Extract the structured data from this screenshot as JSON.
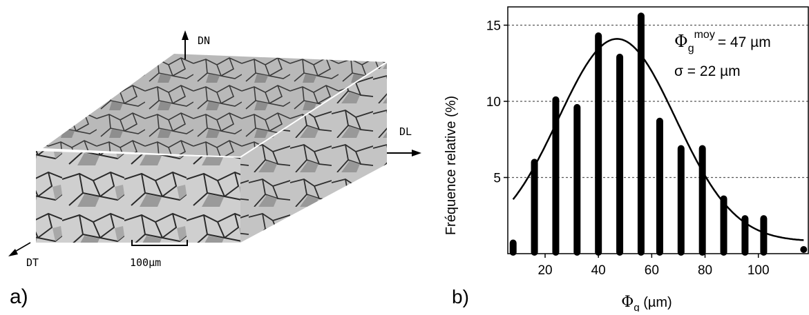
{
  "panel_a": {
    "label": "a)",
    "axis_labels": {
      "normal": "DN",
      "rolling": "DL",
      "transverse": "DT"
    },
    "scale_bar": "100µm"
  },
  "panel_b": {
    "label": "b)",
    "annotation": {
      "phi_symbol": "Φ",
      "phi_sub": "g",
      "phi_sup": "moy",
      "mean_text": "= 47 µm",
      "sigma_text": "σ = 22 µm"
    }
  },
  "chart_data": {
    "type": "bar",
    "xlabel": {
      "symbol": "Φ",
      "sub": "g",
      "unit": " (µm)"
    },
    "ylabel": "Fréquence relative (%)",
    "xlim": [
      6,
      119
    ],
    "ylim": [
      0,
      16.2
    ],
    "xticks": [
      20,
      40,
      60,
      80,
      100
    ],
    "yticks": [
      5,
      10,
      15
    ],
    "grid": "horizontal dotted",
    "bars": {
      "x": [
        8,
        16,
        24,
        32,
        40,
        48,
        56,
        63,
        71,
        79,
        87,
        95,
        102,
        117
      ],
      "values": [
        0.7,
        6.0,
        10.1,
        9.6,
        14.3,
        12.9,
        15.6,
        8.7,
        6.9,
        6.9,
        3.6,
        2.3,
        2.3,
        0.4
      ]
    },
    "fit": {
      "type": "normal",
      "mean": 47,
      "sigma": 22,
      "peak": 14.1,
      "baseline": 0.8
    },
    "colors": {
      "bars": "#000000",
      "grid": "#555555"
    }
  }
}
